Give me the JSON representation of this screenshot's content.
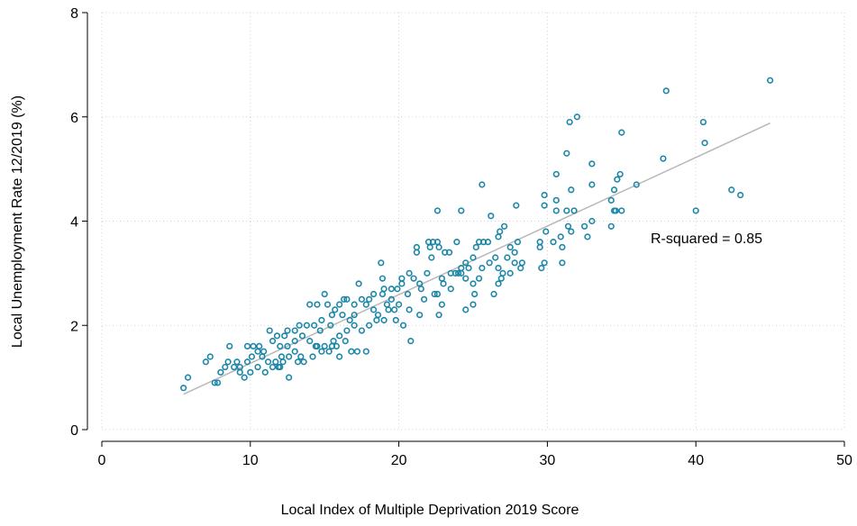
{
  "chart_data": {
    "type": "scatter",
    "x_label": "Local Index of Multiple Deprivation 2019 Score",
    "y_label": "Local Unemployment Rate 12/2019 (%)",
    "annotation": "R-squared = 0.85",
    "xlim": [
      0,
      50
    ],
    "xticks": [
      0,
      10,
      20,
      30,
      40,
      50
    ],
    "ylim": [
      0,
      8
    ],
    "yticks": [
      0,
      2,
      4,
      6,
      8
    ],
    "grid": true,
    "series": [
      {
        "color": "#1a86a8",
        "x": [
          45,
          38,
          32,
          31.5,
          40.5,
          35,
          40.6,
          31.3,
          37.8,
          33,
          34.9,
          30.6,
          34.7,
          36,
          25.6,
          33,
          42.4,
          31.6,
          34.5,
          43,
          29.8,
          30.6,
          34.3,
          29.8,
          27.9,
          31.3,
          22.6,
          24.2,
          31.8,
          34.5,
          35,
          40,
          34.6,
          26.2,
          30.6,
          33,
          32.5,
          34.3,
          31.4,
          31.6,
          26.8,
          27.1,
          30.9,
          32.7,
          29.9,
          26.7,
          30.4,
          29.5,
          28,
          25.7,
          25.4,
          26,
          27.5,
          31,
          29.5,
          21.2,
          22.3,
          22.6,
          22,
          22.1,
          22.7,
          23.4,
          23.1,
          21.2,
          22.2,
          23.9,
          24.2,
          24.5,
          25,
          25.2,
          26.5,
          26.7,
          27.3,
          27.8,
          28.3,
          27,
          26.9,
          25.6,
          25.4,
          26.1,
          29.8,
          29.6,
          31,
          28.2,
          27.8,
          26.7,
          26.4,
          25.1,
          24.5,
          24.7,
          24.2,
          24.0,
          23.5,
          23.0,
          22.9,
          22.6,
          22.4,
          22.9,
          22.7,
          24.5,
          25.0,
          23.5,
          21.5,
          21.4,
          21.0,
          20.7,
          20.2,
          20.6,
          20.2,
          21.7,
          21.4,
          20.7,
          20.0,
          19.5,
          19.2,
          18.9,
          18.8,
          18.9,
          19.0,
          19.5,
          19.9,
          19.3,
          19.8,
          20.3,
          20.8,
          19.0,
          18.6,
          18.3,
          18.0,
          17.8,
          17.3,
          17.5,
          17.0,
          17.0,
          16.5,
          16.0,
          16.2,
          15.7,
          15.5,
          15.0,
          15.2,
          14.5,
          14.0,
          14.8,
          14.3,
          13.8,
          13.3,
          13.0,
          12.3,
          11.8,
          11.5,
          12.0,
          12.5,
          13.0,
          13.5,
          14.0,
          14.5,
          15.0,
          15.5,
          16.0,
          16.5,
          17.0,
          17.5,
          18.0,
          18.5,
          16.4,
          16.8,
          17.2,
          16.0,
          15.8,
          15.3,
          14.8,
          14.2,
          13.6,
          13.0,
          12.6,
          12.2,
          11.7,
          11.2,
          10.8,
          10.5,
          10.1,
          9.8,
          9.3,
          8.9,
          8.5,
          8.3,
          8.0,
          7.8,
          7.6,
          8.6,
          9.3,
          9.6,
          9.8,
          10.2,
          10.9,
          11.3,
          12.5,
          12.6,
          12.0,
          11.5,
          11.0,
          10.5,
          10.0,
          13.4,
          14.4,
          15.6,
          17.8,
          18.3,
          5.5,
          5.8,
          7.0,
          7.3,
          9.1,
          16.3,
          14.7,
          15.4,
          16.7,
          19.7,
          21.9,
          23.8,
          25.0,
          27.5,
          13.2,
          12.1,
          11.9,
          10.6
        ],
        "values": [
          6.7,
          6.5,
          6.0,
          5.9,
          5.9,
          5.7,
          5.5,
          5.3,
          5.2,
          5.1,
          4.9,
          4.9,
          4.8,
          4.7,
          4.7,
          4.7,
          4.6,
          4.6,
          4.6,
          4.5,
          4.5,
          4.4,
          4.4,
          4.3,
          4.3,
          4.2,
          4.2,
          4.2,
          4.2,
          4.2,
          4.2,
          4.2,
          4.2,
          4.1,
          4.2,
          4.0,
          3.9,
          3.9,
          3.9,
          3.8,
          3.8,
          3.9,
          3.7,
          3.7,
          3.8,
          3.7,
          3.6,
          3.6,
          3.6,
          3.6,
          3.6,
          3.6,
          3.5,
          3.5,
          3.5,
          3.5,
          3.6,
          3.6,
          3.6,
          3.5,
          3.5,
          3.4,
          3.4,
          3.4,
          3.3,
          3.6,
          3.1,
          3.2,
          3.3,
          3.5,
          3.3,
          3.1,
          3.3,
          3.2,
          3.2,
          3.0,
          2.9,
          3.1,
          2.9,
          3.2,
          3.2,
          3.1,
          3.2,
          3.1,
          3.4,
          2.8,
          2.6,
          2.6,
          2.9,
          3.1,
          3.0,
          3.0,
          3.0,
          2.8,
          2.9,
          2.6,
          2.6,
          2.4,
          2.2,
          2.3,
          2.4,
          2.7,
          2.7,
          2.8,
          2.9,
          3.0,
          2.8,
          2.6,
          2.9,
          2.5,
          2.2,
          2.3,
          2.4,
          2.5,
          2.4,
          2.6,
          3.2,
          2.9,
          2.7,
          2.7,
          2.7,
          2.3,
          2.1,
          2.0,
          1.7,
          2.1,
          2.2,
          2.3,
          2.5,
          2.4,
          2.8,
          2.5,
          2.4,
          2.2,
          2.5,
          2.4,
          2.2,
          2.3,
          2.2,
          2.6,
          2.4,
          2.4,
          2.4,
          2.1,
          2.0,
          2.0,
          2.0,
          1.9,
          1.8,
          1.8,
          1.7,
          1.6,
          1.6,
          1.7,
          1.8,
          1.7,
          1.6,
          1.6,
          1.6,
          1.8,
          1.9,
          2.0,
          1.9,
          2.0,
          2.1,
          1.7,
          1.5,
          1.5,
          1.4,
          1.6,
          1.5,
          1.5,
          1.4,
          1.3,
          1.5,
          1.4,
          1.3,
          1.3,
          1.3,
          1.4,
          1.5,
          1.4,
          1.3,
          1.2,
          1.2,
          1.3,
          1.2,
          1.1,
          0.9,
          0.9,
          1.6,
          1.1,
          1.0,
          1.6,
          1.6,
          1.5,
          1.9,
          1.9,
          1.0,
          1.2,
          1.2,
          1.1,
          1.2,
          1.1,
          1.4,
          1.6,
          1.7,
          1.5,
          2.6,
          0.8,
          1.0,
          1.3,
          1.4,
          1.3,
          2.5,
          1.9,
          2.0,
          2.1,
          2.3,
          3.0,
          3.0,
          2.8,
          3.0,
          1.3,
          1.4,
          1.2,
          1.6
        ]
      },
      {
        "type": "line",
        "color": "#b8b8b8",
        "x": [
          5.5,
          45
        ],
        "values": [
          0.68,
          5.88
        ]
      }
    ]
  }
}
